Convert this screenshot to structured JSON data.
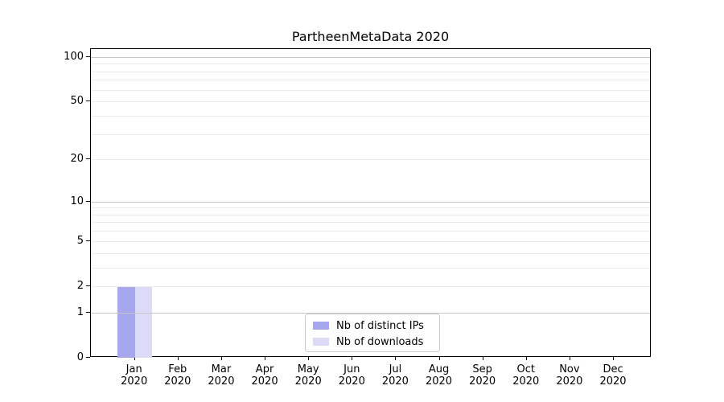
{
  "chart_data": {
    "type": "bar",
    "title": "PartheenMetaData 2020",
    "categories": [
      "Jan",
      "Feb",
      "Mar",
      "Apr",
      "May",
      "Jun",
      "Jul",
      "Aug",
      "Sep",
      "Oct",
      "Nov",
      "Dec"
    ],
    "category_year": "2020",
    "series": [
      {
        "name": "Nb of distinct IPs",
        "color": "#a7a7f0",
        "values": [
          2,
          0,
          0,
          0,
          0,
          0,
          0,
          0,
          0,
          0,
          0,
          0
        ]
      },
      {
        "name": "Nb of downloads",
        "color": "#dbdbf8",
        "values": [
          2,
          0,
          0,
          0,
          0,
          0,
          0,
          0,
          0,
          0,
          0,
          0
        ]
      }
    ],
    "yscale": "log1p",
    "ylim": [
      0,
      113
    ],
    "yticks": [
      0,
      1,
      2,
      5,
      10,
      20,
      50,
      100
    ],
    "major_gridlines": [
      1,
      10,
      100
    ],
    "minor_gridlines": [
      2,
      3,
      4,
      5,
      6,
      7,
      8,
      9,
      20,
      30,
      40,
      50,
      60,
      70,
      80,
      90
    ],
    "grid": "horizontal",
    "legend_position": "lower center"
  },
  "colors": {
    "major_grid": "#c6c6c6",
    "minor_grid": "#ebebeb",
    "spine": "#000000",
    "text": "#000000"
  }
}
